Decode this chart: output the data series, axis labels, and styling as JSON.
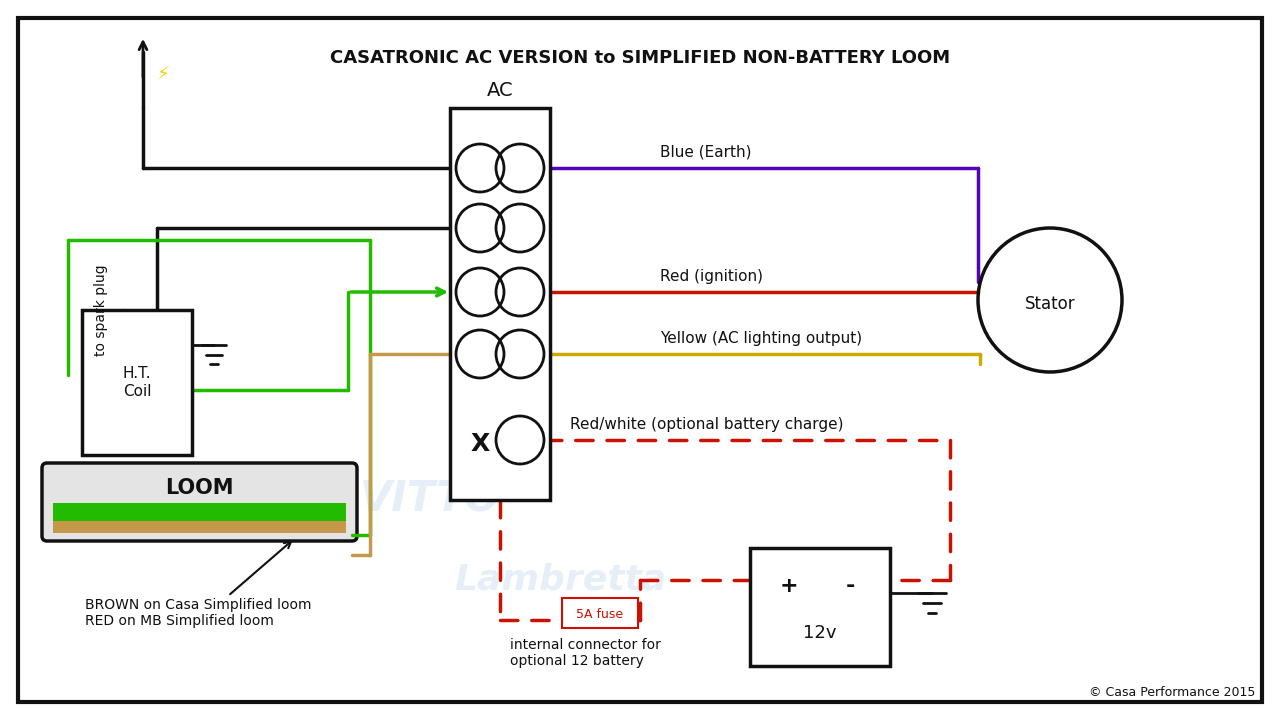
{
  "title": "CASATRONIC AC VERSION to SIMPLIFIED NON-BATTERY LOOM",
  "bg": "#ffffff",
  "black": "#111111",
  "green": "#22bb00",
  "purple": "#5500bb",
  "red": "#cc1100",
  "yellow": "#ccaa00",
  "brown": "#c49a4a",
  "dashed_red": "#cc1100",
  "blue_label": "Blue (Earth)",
  "red_label": "Red (ignition)",
  "yellow_label": "Yellow (AC lighting output)",
  "redwhite_label": "Red/white (optional battery charge)",
  "fuse_label": "5A fuse",
  "battery_label": "internal connector for\noptional 12 battery",
  "loom_label": "LOOM",
  "coil_label": "H.T.\nCoil",
  "ac_label": "AC",
  "spark_label": "to spark plug",
  "brown_label": "BROWN on Casa Simplified loom\nRED on MB Simplified loom",
  "stator_label": "Stator",
  "copyright": "© Casa Performance 2015"
}
